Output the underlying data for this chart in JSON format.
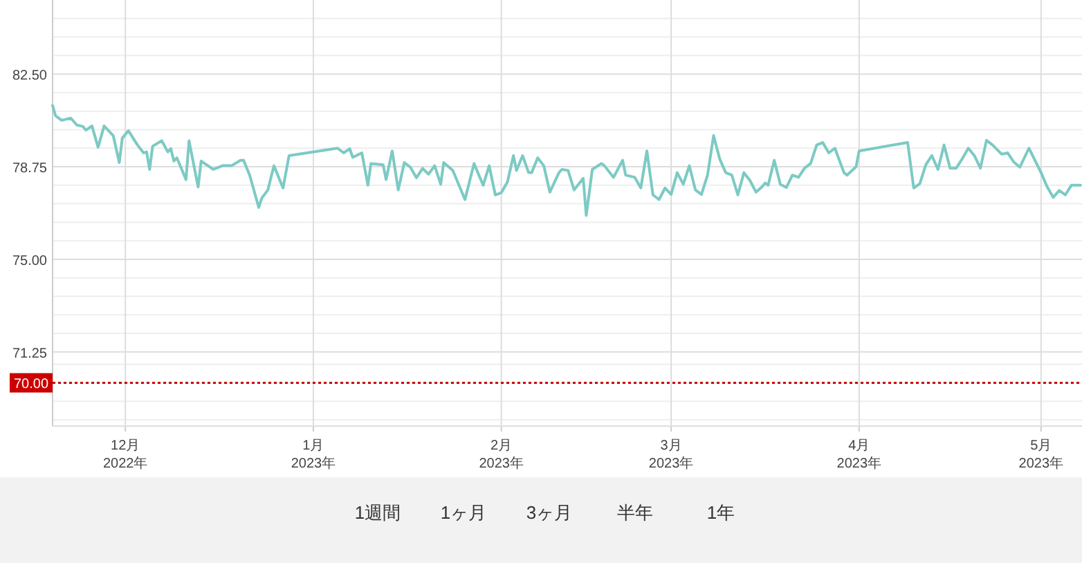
{
  "chart_data": {
    "type": "line",
    "x": [
      "2022-11-19",
      "2022-11-19T12:00",
      "2022-11-20T12:00",
      "2022-11-22",
      "2022-11-23",
      "2022-11-24",
      "2022-11-24T12:00",
      "2022-11-25T12:00",
      "2022-11-26T12:00",
      "2022-11-27T12:00",
      "2022-11-29",
      "2022-11-30",
      "2022-11-30T12:00",
      "2022-12-01T12:00",
      "2022-12-03",
      "2022-12-04",
      "2022-12-04T12:00",
      "2022-12-05",
      "2022-12-05T12:00",
      "2022-12-07",
      "2022-12-08",
      "2022-12-08T12:00",
      "2022-12-09",
      "2022-12-09T12:00",
      "2022-12-11",
      "2022-12-11T12:00",
      "2022-12-13",
      "2022-12-13T12:00",
      "2022-12-15T12:00",
      "2022-12-17",
      "2022-12-18T12:00",
      "2022-12-20",
      "2022-12-20T12:00",
      "2022-12-21T12:00",
      "2022-12-23",
      "2022-12-23T12:00",
      "2022-12-24T12:00",
      "2022-12-25T12:00",
      "2022-12-27",
      "2022-12-28",
      "2023-01-05",
      "2023-01-06",
      "2023-01-07",
      "2023-01-07T12:00",
      "2023-01-09",
      "2023-01-10",
      "2023-01-10T12:00",
      "2023-01-12T12:00",
      "2023-01-13",
      "2023-01-14",
      "2023-01-15",
      "2023-01-16",
      "2023-01-17",
      "2023-01-18",
      "2023-01-19",
      "2023-01-20",
      "2023-01-21",
      "2023-01-22",
      "2023-01-22T12:00",
      "2023-01-24",
      "2023-01-26",
      "2023-01-27T12:00",
      "2023-01-29",
      "2023-01-30",
      "2023-01-31",
      "2023-02-01",
      "2023-02-02",
      "2023-02-03",
      "2023-02-03T12:00",
      "2023-02-04T12:00",
      "2023-02-05T12:00",
      "2023-02-06",
      "2023-02-07",
      "2023-02-08",
      "2023-02-09",
      "2023-02-10T12:00",
      "2023-02-11",
      "2023-02-12",
      "2023-02-13",
      "2023-02-14T12:00",
      "2023-02-15",
      "2023-02-16",
      "2023-02-17T12:00",
      "2023-02-18",
      "2023-02-19T12:00",
      "2023-02-21",
      "2023-02-21T12:00",
      "2023-02-23",
      "2023-02-24",
      "2023-02-25",
      "2023-02-26",
      "2023-02-27",
      "2023-02-28",
      "2023-03-01",
      "2023-03-02",
      "2023-03-03",
      "2023-03-04",
      "2023-03-05",
      "2023-03-06",
      "2023-03-07",
      "2023-03-08",
      "2023-03-09",
      "2023-03-10",
      "2023-03-11",
      "2023-03-12",
      "2023-03-13",
      "2023-03-14",
      "2023-03-15",
      "2023-03-16",
      "2023-03-16T12:00",
      "2023-03-17",
      "2023-03-18",
      "2023-03-19",
      "2023-03-20",
      "2023-03-21",
      "2023-03-22",
      "2023-03-23",
      "2023-03-24",
      "2023-03-25",
      "2023-03-26",
      "2023-03-27",
      "2023-03-28",
      "2023-03-29T12:00",
      "2023-03-30",
      "2023-03-31T12:00",
      "2023-04-01",
      "2023-04-09",
      "2023-04-10",
      "2023-04-11",
      "2023-04-12",
      "2023-04-13",
      "2023-04-14",
      "2023-04-15",
      "2023-04-16",
      "2023-04-17",
      "2023-04-18",
      "2023-04-19",
      "2023-04-20",
      "2023-04-21",
      "2023-04-22",
      "2023-04-23",
      "2023-04-24T12:00",
      "2023-04-25T12:00",
      "2023-04-26T12:00",
      "2023-04-27T12:00",
      "2023-04-29",
      "2023-05-01",
      "2023-05-02",
      "2023-05-03",
      "2023-05-04",
      "2023-05-05",
      "2023-05-06",
      "2023-05-07T12:00"
    ],
    "series": [
      {
        "color": "#7ccac4",
        "values": [
          81.23,
          80.81,
          80.63,
          80.72,
          80.44,
          80.38,
          80.23,
          80.4,
          79.54,
          80.4,
          80.01,
          78.92,
          79.91,
          80.21,
          79.63,
          79.31,
          79.35,
          78.64,
          79.58,
          79.8,
          79.35,
          79.48,
          78.98,
          79.11,
          78.23,
          79.8,
          77.93,
          78.98,
          78.64,
          78.79,
          78.79,
          79.01,
          79.01,
          78.41,
          77.1,
          77.48,
          77.81,
          78.79,
          77.89,
          79.2,
          79.5,
          79.31,
          79.48,
          79.13,
          79.31,
          78.0,
          78.88,
          78.83,
          78.23,
          79.39,
          77.81,
          78.92,
          78.73,
          78.3,
          78.68,
          78.45,
          78.79,
          78.04,
          78.92,
          78.6,
          77.42,
          78.88,
          78.0,
          78.79,
          77.61,
          77.7,
          78.13,
          79.2,
          78.6,
          79.2,
          78.51,
          78.51,
          79.11,
          78.79,
          77.72,
          78.51,
          78.64,
          78.6,
          77.81,
          78.28,
          76.78,
          78.64,
          78.88,
          78.79,
          78.32,
          79.01,
          78.41,
          78.32,
          77.89,
          79.39,
          77.61,
          77.42,
          77.89,
          77.63,
          78.51,
          78.04,
          78.79,
          77.81,
          77.63,
          78.41,
          80.01,
          79.07,
          78.51,
          78.41,
          77.61,
          78.51,
          78.19,
          77.72,
          77.94,
          78.09,
          78.0,
          79.01,
          78.04,
          77.91,
          78.41,
          78.32,
          78.69,
          78.88,
          79.63,
          79.73,
          79.31,
          79.5,
          78.51,
          78.41,
          78.75,
          79.39,
          79.73,
          77.89,
          78.06,
          78.83,
          79.2,
          78.64,
          79.63,
          78.69,
          78.69,
          79.07,
          79.5,
          79.2,
          78.69,
          79.82,
          79.63,
          79.26,
          79.31,
          78.94,
          78.73,
          79.5,
          78.51,
          77.94,
          77.51,
          77.79,
          77.61,
          78.0,
          78.0
        ]
      }
    ],
    "xlim": [
      "2022-11-19",
      "2023-05-07T18:00"
    ],
    "xticks": [
      {
        "value": "2022-12-01",
        "label": "12月\n2022年"
      },
      {
        "value": "2023-01-01",
        "label": "1月\n2023年"
      },
      {
        "value": "2023-02-01",
        "label": "2月\n2023年"
      },
      {
        "value": "2023-03-01",
        "label": "3月\n2023年"
      },
      {
        "value": "2023-04-01",
        "label": "4月\n2023年"
      },
      {
        "value": "2023-05-01",
        "label": "5月\n2023年"
      }
    ],
    "ylim": [
      68.25,
      85.5
    ],
    "yticks": [
      {
        "value": 68.5,
        "label": null
      },
      {
        "value": 69.25,
        "label": null
      },
      {
        "value": 70,
        "label": null
      },
      {
        "value": 70.75,
        "label": null
      },
      {
        "value": 71.25,
        "label": "71.25"
      },
      {
        "value": 72,
        "label": null
      },
      {
        "value": 72.75,
        "label": null
      },
      {
        "value": 73.5,
        "label": null
      },
      {
        "value": 74.25,
        "label": null
      },
      {
        "value": 75,
        "label": "75.00"
      },
      {
        "value": 75.75,
        "label": null
      },
      {
        "value": 76.5,
        "label": null
      },
      {
        "value": 77.25,
        "label": null
      },
      {
        "value": 78,
        "label": null
      },
      {
        "value": 78.75,
        "label": "78.75"
      },
      {
        "value": 79.5,
        "label": null
      },
      {
        "value": 80.25,
        "label": null
      },
      {
        "value": 81,
        "label": null
      },
      {
        "value": 81.75,
        "label": null
      },
      {
        "value": 82.5,
        "label": "82.50"
      },
      {
        "value": 83.25,
        "label": null
      },
      {
        "value": 84,
        "label": null
      },
      {
        "value": 84.75,
        "label": null
      }
    ],
    "grid": true,
    "marker": "none",
    "line_style": "solid",
    "ref_lines": [
      {
        "axis": "y",
        "value": 70,
        "label": "70.00",
        "color": "#cc0000",
        "line_style": "dotted"
      }
    ],
    "annotations": [
      "1週間",
      "1ヶ月",
      "3ヶ月",
      "半年",
      "1年"
    ]
  }
}
